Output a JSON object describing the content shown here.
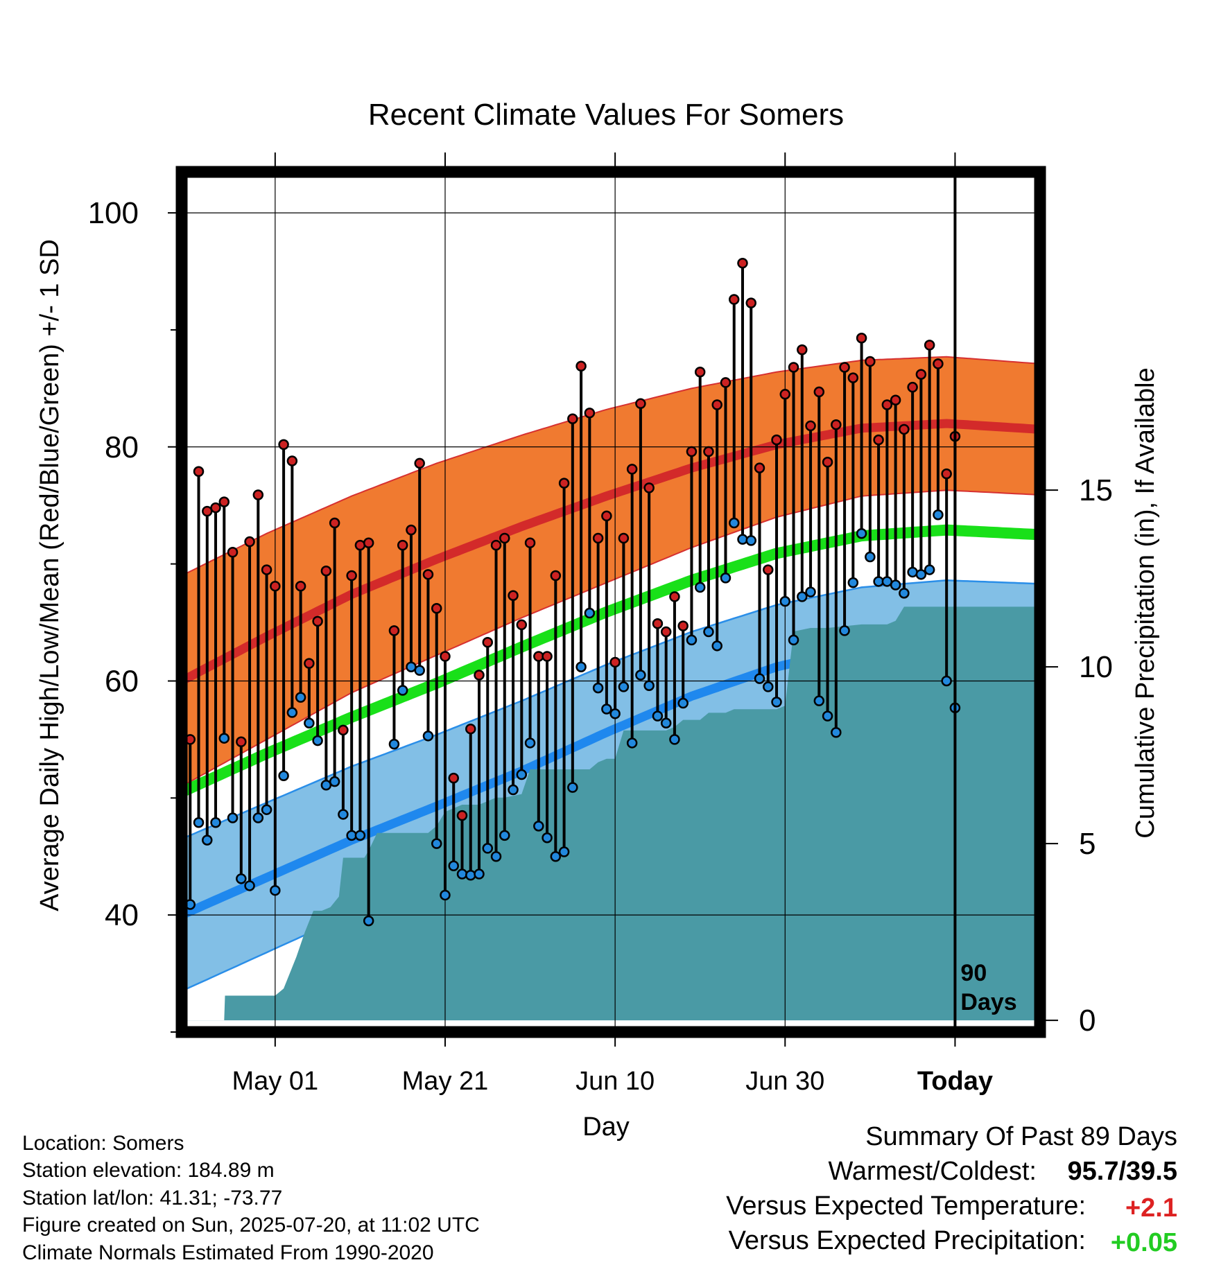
{
  "chart_data": {
    "type": "line",
    "title": "Recent Climate Values For Somers",
    "xlabel": "Day",
    "ylabel_left": "Average Daily High/Low/Mean (Red/Blue/Green) +/- 1 SD",
    "ylabel_right": "Cumulative Precipitation (in), If Available",
    "x_range_days": [
      0,
      101
    ],
    "ylim_left": [
      30,
      103.5
    ],
    "ylim_right": [
      -0.33,
      24
    ],
    "left_ticks": [
      "40",
      "60",
      "80",
      "100"
    ],
    "left_tick_values": [
      40,
      60,
      80,
      100
    ],
    "right_ticks": [
      "0",
      "5",
      "10",
      "15"
    ],
    "right_tick_values": [
      0,
      5,
      10,
      15
    ],
    "x_ticks": [
      {
        "label": "May 01",
        "day": 11
      },
      {
        "label": "May 21",
        "day": 31
      },
      {
        "label": "Jun 10",
        "day": 51
      },
      {
        "label": "Jun 30",
        "day": 71
      },
      {
        "label": "Today",
        "day": 91
      }
    ],
    "today_day": 91,
    "today_label_1": "90",
    "today_label_2": "Days",
    "normals": {
      "days": [
        0,
        10,
        20,
        30,
        40,
        50,
        60,
        70,
        80,
        90,
        101
      ],
      "high_mean": [
        60.0,
        63.8,
        67.4,
        70.4,
        73.2,
        75.8,
        78.2,
        80.2,
        81.6,
        82.0,
        81.5
      ],
      "high_sd": [
        9.0,
        8.8,
        8.4,
        8.2,
        7.8,
        7.4,
        6.8,
        6.2,
        5.8,
        5.7,
        5.6
      ],
      "low_mean": [
        40.0,
        43.2,
        46.4,
        49.3,
        52.3,
        55.6,
        58.7,
        61.2,
        62.9,
        63.5,
        63.2
      ],
      "low_sd": [
        6.5,
        6.4,
        6.3,
        6.1,
        6.0,
        5.8,
        5.5,
        5.3,
        5.1,
        5.1,
        5.1
      ],
      "avg_mean": [
        50.5,
        53.8,
        56.9,
        59.8,
        62.9,
        65.9,
        68.6,
        70.9,
        72.4,
        72.9,
        72.5
      ]
    },
    "series": [
      {
        "name": "High",
        "color": "#cc2222",
        "start_day": 1,
        "values": [
          55.0,
          77.9,
          74.5,
          74.8,
          75.3,
          71.0,
          54.8,
          71.9,
          75.9,
          69.5,
          68.1,
          80.2,
          78.8,
          68.1,
          61.5,
          65.1,
          69.4,
          73.5,
          55.8,
          69.0,
          71.6,
          71.8,
          null,
          null,
          64.3,
          71.6,
          72.9,
          78.6,
          69.1,
          66.2,
          62.1,
          51.7,
          48.5,
          55.9,
          60.5,
          63.3,
          71.6,
          72.2,
          67.3,
          64.8,
          71.8,
          62.1,
          62.1,
          69.0,
          76.9,
          82.4,
          86.9,
          82.9,
          72.2,
          74.1,
          61.6,
          72.2,
          78.1,
          83.7,
          76.5,
          64.9,
          64.2,
          67.2,
          64.7,
          79.6,
          86.4,
          79.6,
          83.6,
          85.5,
          92.6,
          95.7,
          92.3,
          78.2,
          69.5,
          80.6,
          84.5,
          86.8,
          88.3,
          81.8,
          84.7,
          78.7,
          81.9,
          86.8,
          85.9,
          89.3,
          87.3,
          80.6,
          83.6,
          84.0,
          81.5,
          85.1,
          86.2,
          88.7,
          87.1,
          77.7,
          80.9
        ],
        "low_values": [
          40.9,
          47.9,
          46.4,
          47.9,
          55.1,
          48.3,
          43.1,
          42.5,
          48.3,
          49.0,
          42.1,
          51.9,
          57.3,
          58.6,
          56.4,
          54.9,
          51.1,
          51.4,
          48.6,
          46.8,
          46.8,
          39.5,
          null,
          null,
          54.6,
          59.2,
          61.2,
          60.9,
          55.3,
          46.1,
          41.7,
          44.2,
          43.5,
          43.4,
          43.5,
          45.7,
          45.0,
          46.8,
          50.7,
          52.0,
          54.7,
          47.6,
          46.6,
          45.0,
          45.4,
          50.9,
          61.2,
          65.8,
          59.4,
          57.6,
          57.2,
          59.5,
          54.7,
          60.5,
          59.6,
          57.0,
          56.4,
          55.0,
          58.1,
          63.5,
          68.0,
          64.2,
          63.0,
          68.8,
          73.5,
          72.1,
          72.0,
          60.2,
          59.5,
          58.2,
          66.8,
          63.5,
          67.2,
          67.6,
          58.3,
          57.0,
          55.6,
          64.3,
          68.4,
          72.6,
          70.6,
          68.5,
          68.5,
          68.2,
          67.5,
          69.3,
          69.1,
          69.5,
          74.2,
          60.0,
          57.7
        ]
      }
    ],
    "precip_cumulative": {
      "days": [
        0,
        5,
        5.1,
        11,
        12,
        13.5,
        14.5,
        15.5,
        16.5,
        17.5,
        18.5,
        19,
        20,
        21.5,
        22,
        23,
        25,
        26,
        29,
        30,
        31,
        32,
        33,
        35,
        37,
        38,
        40,
        41,
        42,
        44,
        47,
        48,
        49,
        50,
        51,
        52,
        56,
        57,
        58,
        59,
        61,
        62,
        64,
        65,
        66,
        67,
        68,
        70,
        71,
        72,
        74,
        76,
        80,
        83,
        84,
        85,
        101
      ],
      "values": [
        0,
        0,
        0.7,
        0.7,
        0.9,
        1.8,
        2.5,
        3.1,
        3.1,
        3.2,
        3.5,
        4.6,
        4.6,
        4.6,
        4.8,
        5.3,
        5.3,
        5.3,
        5.3,
        5.5,
        5.9,
        6.0,
        6.1,
        6.1,
        6.3,
        6.3,
        6.4,
        7.1,
        7.1,
        7.1,
        7.1,
        7.1,
        7.3,
        7.4,
        7.4,
        8.2,
        8.2,
        8.2,
        8.3,
        8.5,
        8.5,
        8.7,
        8.7,
        8.8,
        8.8,
        8.8,
        8.8,
        8.8,
        8.9,
        11.0,
        11.1,
        11.1,
        11.2,
        11.2,
        11.3,
        11.7,
        11.7
      ]
    },
    "grid": true
  },
  "footer": {
    "location": "Location: Somers",
    "elevation": "Station elevation: 184.89 m",
    "latlon": "Station lat/lon: 41.31; -73.77",
    "created": "Figure created on Sun, 2025-07-20, at 11:02 UTC",
    "normals": "Climate Normals Estimated From 1990-2020"
  },
  "summary": {
    "heading": "Summary Of Past 89 Days",
    "warm_cold_label": "Warmest/Coldest:",
    "warm_cold_value": "95.7/39.5",
    "temp_label": "Versus Expected Temperature:",
    "temp_value": "+2.1",
    "temp_color": "#dd2222",
    "precip_label": "Versus Expected Precipitation:",
    "precip_value": "+0.05",
    "precip_color": "#22cc22"
  },
  "colors": {
    "high_band": "#f07a30",
    "high_line": "#d32a2a",
    "low_band": "#82bfe6",
    "low_line": "#1f88ee",
    "mean_line": "#19e019",
    "precip_fill": "#4a9aa5",
    "high_dot": "#cc2222",
    "low_dot": "#2288dd"
  }
}
